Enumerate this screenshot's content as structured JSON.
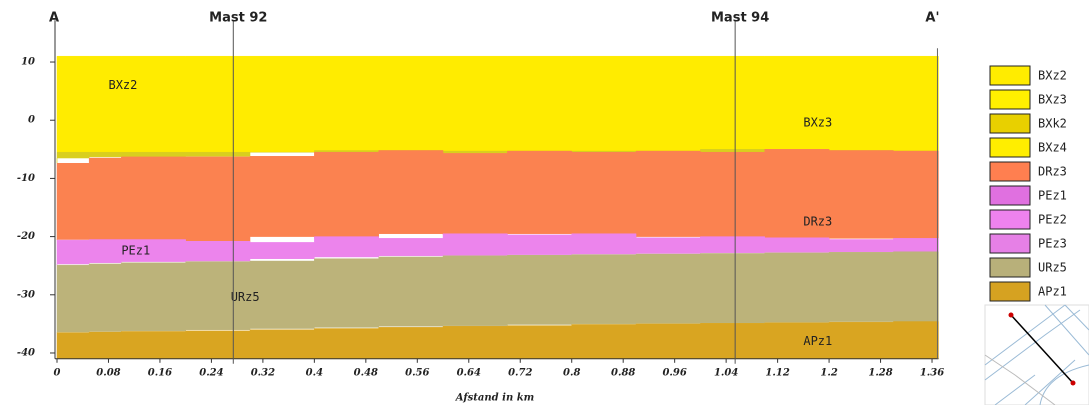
{
  "chart_data": {
    "type": "layers",
    "corner_left": "A",
    "corner_right": "A'",
    "xlabel": "Afstand in km",
    "xlim": [
      0,
      1.37
    ],
    "ylim": [
      -41,
      11.5
    ],
    "xticks": [
      0,
      0.08,
      0.16,
      0.24,
      0.32,
      0.4,
      0.48,
      0.56,
      0.64,
      0.72,
      0.8,
      0.88,
      0.96,
      1.04,
      1.12,
      1.2,
      1.28,
      1.36
    ],
    "yticks": [
      10,
      0,
      -10,
      -20,
      -30,
      -40
    ],
    "markers": [
      {
        "label": "Mast 92",
        "x": 0.274
      },
      {
        "label": "Mast 94",
        "x": 1.054
      }
    ],
    "x": [
      0,
      0.05,
      0.1,
      0.2,
      0.3,
      0.4,
      0.5,
      0.6,
      0.7,
      0.8,
      0.9,
      1.0,
      1.1,
      1.2,
      1.3,
      1.37
    ],
    "series": [
      {
        "name": "BXz2",
        "color": "#ffec00",
        "values": [
          11,
          11,
          11,
          11,
          11,
          11,
          11,
          11,
          11,
          11,
          11,
          11,
          11,
          11,
          11,
          11
        ]
      },
      {
        "color": "#d9cf1e",
        "values": [
          -5.5,
          -5.5,
          -5.5,
          -5.5,
          -5.5,
          -5.5,
          -5.2,
          -5.7,
          -5.3,
          -5.5,
          -5.3,
          -5.5,
          -5,
          -5.2,
          -5.3,
          -5.3
        ]
      },
      {
        "name": "DRz3",
        "color": "#fb8250",
        "values": [
          -7.4,
          -6.5,
          -6.3,
          -6.3,
          -6.2,
          -5.5,
          -5.2,
          -5.7,
          -5.3,
          -5.5,
          -5.3,
          -5.5,
          -5,
          -5.2,
          -5.3,
          -5.3
        ]
      },
      {
        "name": "PEz1",
        "color": "#ec84ec",
        "values": [
          -20.6,
          -20.5,
          -20.5,
          -20.8,
          -21,
          -20,
          -20.3,
          -19.5,
          -19.7,
          -19.5,
          -20.2,
          -20,
          -20.2,
          -20.5,
          -20.3,
          -20.3
        ]
      },
      {
        "name": "URz5",
        "color": "#bcb37a",
        "values": [
          -24.9,
          -24.7,
          -24.5,
          -24.3,
          -24.2,
          -23.8,
          -23.5,
          -23.3,
          -23.2,
          -23.1,
          -23,
          -22.9,
          -22.8,
          -22.7,
          -22.6,
          -22.6
        ]
      },
      {
        "name": "APz1",
        "color": "#d9a521",
        "values": [
          -36.5,
          -36.4,
          -36.3,
          -36.2,
          -36,
          -35.8,
          -35.6,
          -35.4,
          -35.3,
          -35.1,
          -35,
          -34.9,
          -34.8,
          -34.7,
          -34.6,
          -34.6
        ]
      }
    ],
    "annotations": [
      "BXz3"
    ],
    "legend": [
      {
        "name": "BXz2",
        "color": "#ffec00"
      },
      {
        "name": "BXz3",
        "color": "#fff000"
      },
      {
        "name": "BXk2",
        "color": "#e8d000"
      },
      {
        "name": "BXz4",
        "color": "#ffee00"
      },
      {
        "name": "DRz3",
        "color": "#ff7f50"
      },
      {
        "name": "PEz1",
        "color": "#e070e0"
      },
      {
        "name": "PEz2",
        "color": "#ee82ee"
      },
      {
        "name": "PEz3",
        "color": "#e680e6"
      },
      {
        "name": "URz5",
        "color": "#b8b07a"
      },
      {
        "name": "APz1",
        "color": "#d6a221"
      }
    ]
  }
}
